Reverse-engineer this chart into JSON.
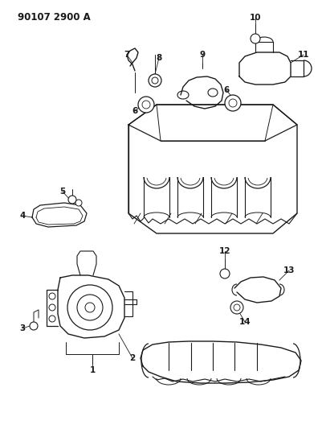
{
  "title": "90107 2900 A",
  "bg_color": "#ffffff",
  "line_color": "#1a1a1a",
  "fig_width": 4.02,
  "fig_height": 5.33,
  "dpi": 100
}
